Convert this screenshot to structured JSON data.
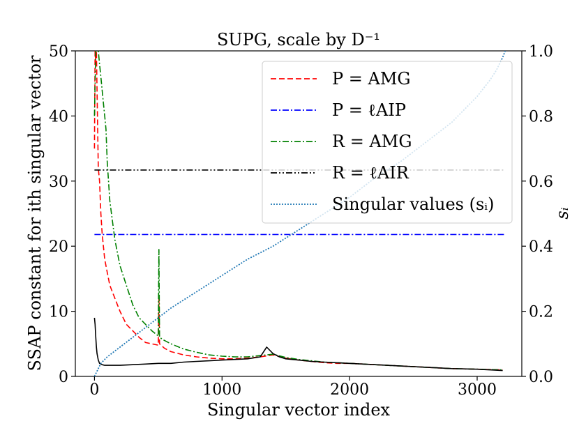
{
  "chart_data": {
    "type": "line",
    "title": "SUPG, scale by D⁻¹",
    "xlabel": "Singular vector index",
    "ylabel": "SSAP constant for ith singular vector",
    "y2label": "sᵢ",
    "xlim": [
      -150,
      3350
    ],
    "ylim": [
      0,
      50
    ],
    "y2lim": [
      0,
      1.0
    ],
    "xticks": [
      0,
      1000,
      2000,
      3000
    ],
    "yticks": [
      0,
      10,
      20,
      30,
      40,
      50
    ],
    "y2ticks": [
      "0.0",
      "0.2",
      "0.4",
      "0.6",
      "0.8",
      "1.0"
    ],
    "grid": false,
    "legend_position": "top-right",
    "series": [
      {
        "name": "P = AMG",
        "color": "#ff0000",
        "dash": "dashed",
        "axis": "left",
        "x": [
          0,
          5,
          10,
          15,
          20,
          25,
          30,
          40,
          50,
          60,
          70,
          80,
          100,
          120,
          140,
          160,
          180,
          200,
          250,
          300,
          350,
          400,
          450,
          500,
          505,
          510,
          550,
          600,
          700,
          800,
          900,
          1000,
          1100,
          1200,
          1300,
          1400,
          1500,
          1600,
          1700,
          1800,
          1900,
          2000,
          2200,
          2400,
          2600,
          2800,
          3000,
          3200
        ],
        "y": [
          35,
          50,
          48,
          50,
          44,
          38,
          32,
          30,
          25,
          22,
          20,
          18,
          16,
          14,
          13,
          12,
          11,
          10,
          8,
          7,
          6,
          5.2,
          5,
          4.8,
          12.5,
          5,
          4.3,
          3.8,
          3.3,
          3.0,
          2.8,
          2.7,
          2.7,
          2.8,
          3.0,
          3.3,
          2.8,
          2.5,
          2.3,
          2.1,
          2.0,
          2.0,
          1.8,
          1.6,
          1.4,
          1.2,
          1.1,
          1.0
        ]
      },
      {
        "name": "P = ℓAIP",
        "color": "#0000ff",
        "dash": "dashdot",
        "axis": "left",
        "x": [
          0,
          3220
        ],
        "y": [
          21.8,
          21.8
        ]
      },
      {
        "name": "R = AMG",
        "color": "#008000",
        "dash": "dashdot",
        "axis": "left",
        "x": [
          0,
          10,
          20,
          30,
          40,
          50,
          60,
          70,
          80,
          90,
          100,
          120,
          140,
          160,
          180,
          200,
          250,
          300,
          350,
          400,
          450,
          500,
          505,
          510,
          550,
          600,
          700,
          800,
          900,
          1000,
          1100,
          1200,
          1300,
          1400,
          1500,
          1600,
          1700,
          1800,
          1900,
          2000,
          2200,
          2400,
          2600,
          2800,
          3000,
          3200
        ],
        "y": [
          40,
          50,
          50,
          50,
          48,
          46,
          44,
          42,
          40,
          38,
          33,
          27,
          24,
          21,
          19,
          17,
          14,
          11,
          9,
          8,
          7,
          6.2,
          19.5,
          6,
          5.5,
          5,
          4.2,
          3.7,
          3.3,
          3.1,
          3.0,
          3.0,
          3.2,
          3.4,
          2.9,
          2.6,
          2.4,
          2.2,
          2.1,
          2.0,
          1.8,
          1.6,
          1.4,
          1.2,
          1.1,
          1.0
        ]
      },
      {
        "name": "R = ℓAIR",
        "color": "#000000",
        "dash": "dashdotdot",
        "axis": "left",
        "x": [
          0,
          3220
        ],
        "y": [
          31.7,
          31.7
        ]
      },
      {
        "name": "R = ℓAIR (per-vector)",
        "legend": false,
        "color": "#000000",
        "dash": "solid",
        "axis": "left",
        "x": [
          0,
          5,
          10,
          15,
          20,
          30,
          40,
          60,
          80,
          100,
          200,
          300,
          400,
          500,
          600,
          700,
          800,
          900,
          1000,
          1100,
          1200,
          1300,
          1350,
          1400,
          1450,
          1500,
          1600,
          1700,
          1800,
          1900,
          2000,
          2200,
          2400,
          2600,
          2800,
          3000,
          3200
        ],
        "y": [
          9,
          8,
          6,
          4.5,
          3.5,
          2.5,
          2.0,
          1.8,
          1.7,
          1.7,
          1.7,
          1.8,
          1.9,
          2.0,
          2.0,
          2.2,
          2.3,
          2.4,
          2.5,
          2.6,
          2.7,
          3.0,
          4.5,
          3.5,
          3.0,
          2.7,
          2.5,
          2.3,
          2.2,
          2.1,
          2.0,
          1.8,
          1.6,
          1.4,
          1.2,
          1.1,
          0.9
        ]
      },
      {
        "name": "Singular values (sᵢ)",
        "color": "#1f77b4",
        "dash": "dotted",
        "axis": "right",
        "x": [
          0,
          50,
          100,
          200,
          300,
          400,
          500,
          600,
          800,
          1000,
          1200,
          1400,
          1600,
          1800,
          2000,
          2200,
          2400,
          2600,
          2800,
          3000,
          3100,
          3150,
          3200,
          3220
        ],
        "y": [
          0.0,
          0.04,
          0.06,
          0.09,
          0.12,
          0.15,
          0.18,
          0.21,
          0.26,
          0.31,
          0.36,
          0.4,
          0.45,
          0.5,
          0.55,
          0.61,
          0.66,
          0.72,
          0.78,
          0.86,
          0.91,
          0.94,
          0.98,
          1.0
        ]
      }
    ]
  }
}
